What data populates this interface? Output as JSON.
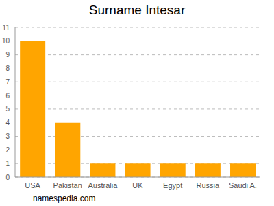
{
  "chart_data": {
    "type": "bar",
    "title": "Surname Intesar",
    "annotations": [
      "namespedia.com"
    ],
    "categories": [
      "USA",
      "Pakistan",
      "Australia",
      "UK",
      "Egypt",
      "Russia",
      "Saudi A."
    ],
    "values": [
      10,
      4,
      1,
      1,
      1,
      1,
      1
    ],
    "color": "#ffa500",
    "ylim": [
      0,
      11
    ],
    "yticks": [
      0,
      1,
      2,
      3,
      4,
      5,
      6,
      7,
      8,
      9,
      10,
      11
    ],
    "grid": true
  }
}
